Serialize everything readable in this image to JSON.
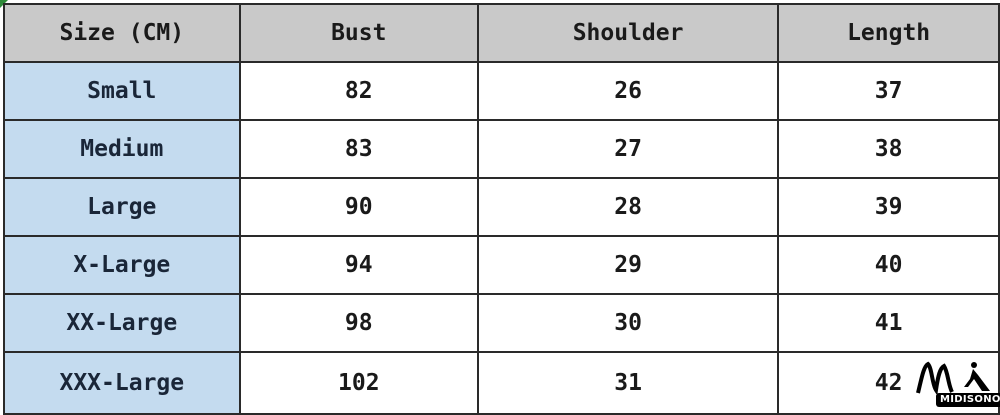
{
  "table": {
    "headers": [
      "Size (CM)",
      "Bust",
      "Shoulder",
      "Length"
    ],
    "rows": [
      [
        "Small",
        "82",
        "26",
        "37"
      ],
      [
        "Medium",
        "83",
        "27",
        "38"
      ],
      [
        "Large",
        "90",
        "28",
        "39"
      ],
      [
        "X-Large",
        "94",
        "29",
        "40"
      ],
      [
        "XX-Large",
        "98",
        "30",
        "41"
      ],
      [
        "XXX-Large",
        "102",
        "31",
        "42"
      ]
    ]
  },
  "logo": {
    "text": "MIDISONO"
  },
  "colors": {
    "header_bg": "#c9c9c9",
    "size_col_bg": "#c4dbef",
    "border": "#2a2a2a"
  }
}
